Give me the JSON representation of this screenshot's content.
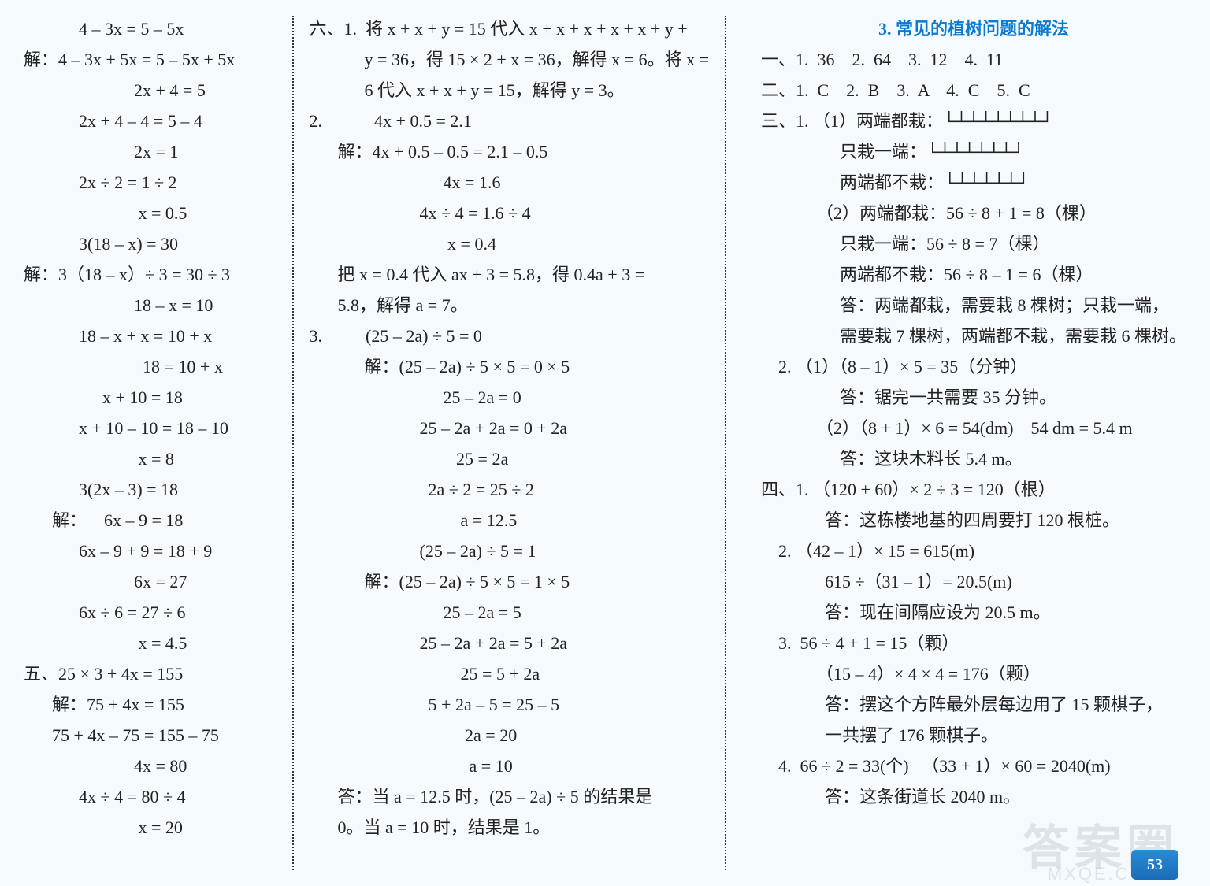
{
  "background_color": "#f5faff",
  "text_color": "#222",
  "title_color": "#0a7ad1",
  "divider_style": "2px dotted #333",
  "font_family": "SimSun",
  "font_size_pt": 16,
  "line_height": 33,
  "page_number": "53",
  "watermark_main": "答案圈",
  "watermark_sub": "MXQE.COM",
  "column1": {
    "lines": [
      {
        "cls": "i2",
        "t": "4 – 3x = 5 – 5x"
      },
      {
        "cls": "",
        "t": "解：4 – 3x + 5x = 5 – 5x + 5x"
      },
      {
        "cls": "i4",
        "t": "2x + 4 = 5"
      },
      {
        "cls": "i2",
        "t": "2x + 4 – 4 = 5 – 4"
      },
      {
        "cls": "i4",
        "t": "2x = 1"
      },
      {
        "cls": "i2",
        "t": "2x ÷ 2 = 1 ÷ 2"
      },
      {
        "cls": "i4",
        "t": " x = 0.5"
      },
      {
        "cls": "i2",
        "t": "3(18 – x) = 30"
      },
      {
        "cls": "",
        "t": "解：3（18 – x）÷ 3 = 30 ÷ 3"
      },
      {
        "cls": "i4",
        "t": "18 – x = 10"
      },
      {
        "cls": "i2",
        "t": "18 – x + x = 10 + x"
      },
      {
        "cls": "i4",
        "t": "  18 = 10 + x"
      },
      {
        "cls": "i3",
        "t": "x + 10 = 18"
      },
      {
        "cls": "i2",
        "t": "x + 10 – 10 = 18 – 10"
      },
      {
        "cls": "i4",
        "t": " x = 8"
      },
      {
        "cls": "i2",
        "t": "3(2x – 3) = 18"
      },
      {
        "cls": "i1",
        "t": "解：    6x – 9 = 18"
      },
      {
        "cls": "i2",
        "t": "6x – 9 + 9 = 18 + 9"
      },
      {
        "cls": "i4",
        "t": "6x = 27"
      },
      {
        "cls": "i2",
        "t": "6x ÷ 6 = 27 ÷ 6"
      },
      {
        "cls": "i4",
        "t": " x = 4.5"
      },
      {
        "cls": "",
        "t": "五、25 × 3 + 4x = 155"
      },
      {
        "cls": "i1",
        "t": "解：75 + 4x = 155"
      },
      {
        "cls": "i1",
        "t": "75 + 4x – 75 = 155 – 75"
      },
      {
        "cls": "i4",
        "t": "4x = 80"
      },
      {
        "cls": "i2",
        "t": "4x ÷ 4 = 80 ÷ 4"
      },
      {
        "cls": "i4",
        "t": " x = 20"
      }
    ]
  },
  "column2": {
    "lines": [
      {
        "cls": "",
        "t": "六、1.  将 x + x + y = 15 代入 x + x + x + x + x + y +"
      },
      {
        "cls": "i2",
        "t": "y = 36，得 15 × 2 + x = 36，解得 x = 6。将 x ="
      },
      {
        "cls": "i2",
        "t": "6 代入 x + x + y = 15，解得 y = 3。"
      },
      {
        "cls": "",
        "t": "2.            4x + 0.5 = 2.1"
      },
      {
        "cls": "i1",
        "t": "解：4x + 0.5 – 0.5 = 2.1 – 0.5"
      },
      {
        "cls": "i5",
        "t": "4x = 1.6"
      },
      {
        "cls": "i4",
        "t": "4x ÷ 4 = 1.6 ÷ 4"
      },
      {
        "cls": "i5",
        "t": " x = 0.4"
      },
      {
        "cls": "i1",
        "t": "把 x = 0.4 代入 ax + 3 = 5.8，得 0.4a + 3 ="
      },
      {
        "cls": "i1",
        "t": "5.8，解得 a = 7。"
      },
      {
        "cls": "",
        "t": "3.          (25 – 2a) ÷ 5 = 0"
      },
      {
        "cls": "i2",
        "t": "解：(25 – 2a) ÷ 5 × 5 = 0 × 5"
      },
      {
        "cls": "i5",
        "t": "25 – 2a = 0"
      },
      {
        "cls": "i4",
        "t": "25 – 2a + 2a = 0 + 2a"
      },
      {
        "cls": "i5",
        "t": "   25 = 2a"
      },
      {
        "cls": "i4",
        "t": "  2a ÷ 2 = 25 ÷ 2"
      },
      {
        "cls": "i5",
        "t": "    a = 12.5"
      },
      {
        "cls": "i4",
        "t": "(25 – 2a) ÷ 5 = 1"
      },
      {
        "cls": "i2",
        "t": "解：(25 – 2a) ÷ 5 × 5 = 1 × 5"
      },
      {
        "cls": "i5",
        "t": "25 – 2a = 5"
      },
      {
        "cls": "i4",
        "t": "25 – 2a + 2a = 5 + 2a"
      },
      {
        "cls": "i5",
        "t": "    25 = 5 + 2a"
      },
      {
        "cls": "i4",
        "t": "  5 + 2a – 5 = 25 – 5"
      },
      {
        "cls": "i5",
        "t": "     2a = 20"
      },
      {
        "cls": "i5",
        "t": "      a = 10"
      },
      {
        "cls": "i1",
        "t": "答：当 a = 12.5 时，(25 – 2a) ÷ 5 的结果是"
      },
      {
        "cls": "i1",
        "t": "0。当 a = 10 时，结果是 1。"
      }
    ]
  },
  "column3": {
    "title": "3.  常见的植树问题的解法",
    "lines": [
      {
        "cls": "",
        "t": "一、1.  36    2.  64    3.  12    4.  11"
      },
      {
        "cls": "",
        "t": "二、1.  C    2.  B    3.  A    4.  C    5.  C"
      },
      {
        "cls": "",
        "t": "三、1. （1）两端都栽：└┴┴┴┴┴┴┴┘"
      },
      {
        "cls": "i3",
        "t": "只栽一端：└┴┴┴┴┴┴┘"
      },
      {
        "cls": "i3",
        "t": "两端都不栽：└┴┴┴┴┴┘"
      },
      {
        "cls": "i2",
        "t": "（2）两端都栽：56 ÷ 8 + 1 = 8（棵）"
      },
      {
        "cls": "i3",
        "t": "只栽一端：56 ÷ 8 = 7（棵）"
      },
      {
        "cls": "i3",
        "t": "两端都不栽：56 ÷ 8 – 1 = 6（棵）"
      },
      {
        "cls": "i3",
        "t": "答：两端都栽，需要栽 8 棵树；只栽一端，"
      },
      {
        "cls": "i3",
        "t": "需要栽 7 棵树，两端都不栽，需要栽 6 棵树。"
      },
      {
        "cls": "",
        "t": "    2. （1）（8 – 1）× 5 = 35（分钟）"
      },
      {
        "cls": "i3",
        "t": "答：锯完一共需要 35 分钟。"
      },
      {
        "cls": "i2",
        "t": "（2）（8 + 1）× 6 = 54(dm)    54 dm = 5.4 m"
      },
      {
        "cls": "i3",
        "t": "答：这块木料长 5.4 m。"
      },
      {
        "cls": "",
        "t": "四、1. （120 + 60）× 2 ÷ 3 = 120（根）"
      },
      {
        "cls": "i2",
        "t": "  答：这栋楼地基的四周要打 120 根桩。"
      },
      {
        "cls": "",
        "t": "    2. （42 – 1）× 15 = 615(m)"
      },
      {
        "cls": "i2",
        "t": "  615 ÷（31 – 1）= 20.5(m)"
      },
      {
        "cls": "i2",
        "t": "  答：现在间隔应设为 20.5 m。"
      },
      {
        "cls": "",
        "t": "    3.  56 ÷ 4 + 1 = 15（颗）"
      },
      {
        "cls": "i2",
        "t": "（15 – 4）× 4 × 4 = 176（颗）"
      },
      {
        "cls": "i2",
        "t": "  答：摆这个方阵最外层每边用了 15 颗棋子，"
      },
      {
        "cls": "i2",
        "t": "  一共摆了 176 颗棋子。"
      },
      {
        "cls": "",
        "t": "    4.  66 ÷ 2 = 33(个)   （33 + 1）× 60 = 2040(m)"
      },
      {
        "cls": "i2",
        "t": "  答：这条街道长 2040 m。"
      }
    ]
  }
}
